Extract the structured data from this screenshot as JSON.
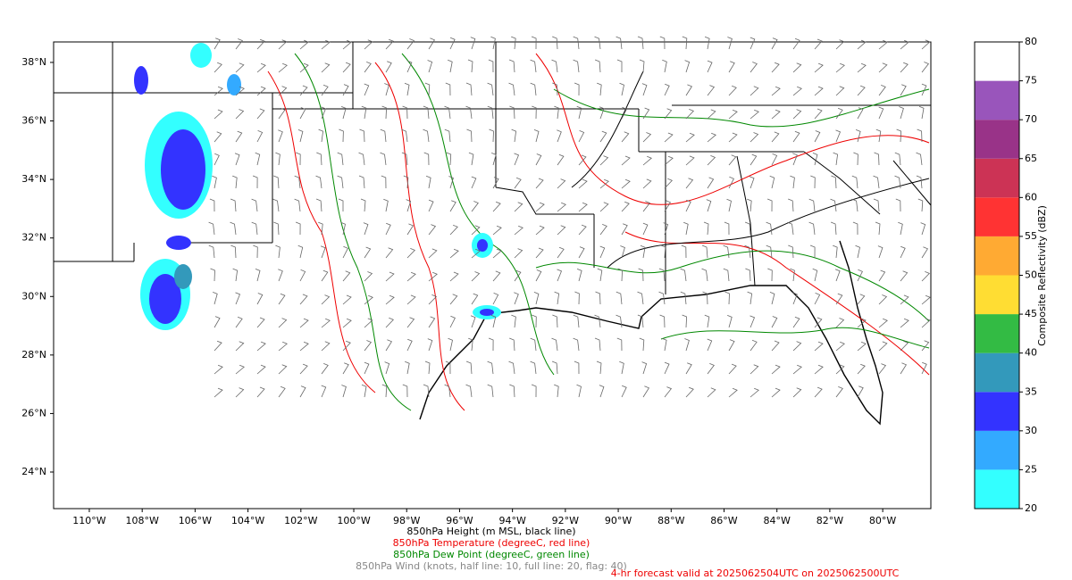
{
  "map": {
    "lon_ticks": [
      {
        "value": -110,
        "label": "110°W"
      },
      {
        "value": -108,
        "label": "108°W"
      },
      {
        "value": -106,
        "label": "106°W"
      },
      {
        "value": -104,
        "label": "104°W"
      },
      {
        "value": -102,
        "label": "102°W"
      },
      {
        "value": -100,
        "label": "100°W"
      },
      {
        "value": -98,
        "label": "98°W"
      },
      {
        "value": -96,
        "label": "96°W"
      },
      {
        "value": -94,
        "label": "94°W"
      },
      {
        "value": -92,
        "label": "92°W"
      },
      {
        "value": -90,
        "label": "90°W"
      },
      {
        "value": -88,
        "label": "88°W"
      },
      {
        "value": -86,
        "label": "86°W"
      },
      {
        "value": -84,
        "label": "84°W"
      },
      {
        "value": -82,
        "label": "82°W"
      },
      {
        "value": -80,
        "label": "80°W"
      }
    ],
    "lat_ticks": [
      {
        "value": 24,
        "label": "24°N"
      },
      {
        "value": 26,
        "label": "26°N"
      },
      {
        "value": 28,
        "label": "28°N"
      },
      {
        "value": 30,
        "label": "30°N"
      },
      {
        "value": 32,
        "label": "32°N"
      },
      {
        "value": 34,
        "label": "34°N"
      },
      {
        "value": 36,
        "label": "36°N"
      },
      {
        "value": 38,
        "label": "38°N"
      }
    ],
    "lon_range": [
      -111.35,
      -78.18
    ],
    "lat_range": [
      22.75,
      38.7
    ]
  },
  "colorbar": {
    "label": "Composite Reflectivity (dBZ)",
    "range": [
      20,
      80
    ],
    "ticks": [
      20,
      25,
      30,
      35,
      40,
      45,
      50,
      55,
      60,
      65,
      70,
      75,
      80
    ],
    "colors": [
      "#33ffff",
      "#33aaff",
      "#3333ff",
      "#3399bb",
      "#33bb44",
      "#ffdd33",
      "#ffaa33",
      "#ff3333",
      "#cc3355",
      "#993388",
      "#9955bb",
      "#ffffff"
    ]
  },
  "captions": [
    {
      "text": "850hPa Height (m MSL, black line)",
      "color": "#000000"
    },
    {
      "text": "850hPa Temperature (degreeC, red line)",
      "color": "#ee0000"
    },
    {
      "text": "850hPa Dew Point (degreeC, green line)",
      "color": "#008800"
    },
    {
      "text": "850hPa Wind (knots, half line: 10, full line: 20, flag: 40)",
      "color": "#888888"
    }
  ],
  "forecast_note": {
    "text": "4-hr forecast valid at 2025062504UTC on 2025062500UTC",
    "color": "#ee0000"
  }
}
